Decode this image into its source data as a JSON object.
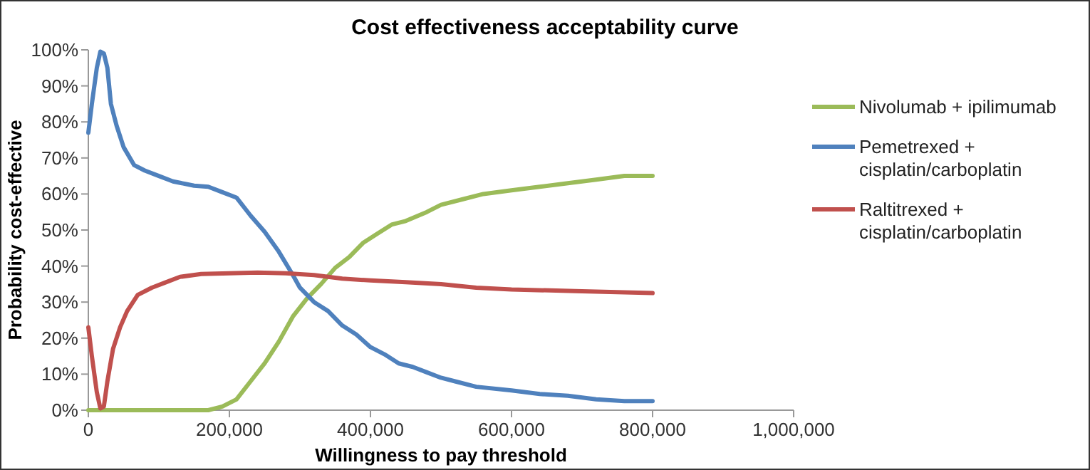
{
  "chart_data": {
    "type": "line",
    "title": "Cost effectiveness acceptability curve",
    "xlabel": "Willingness to pay threshold",
    "ylabel": "Probability cost-effective",
    "xlim": [
      0,
      1000000
    ],
    "xticks": [
      0,
      {
        "value": 200000,
        "label": "200,000"
      },
      {
        "value": 400000,
        "label": "400,000"
      },
      {
        "value": 600000,
        "label": "600,000"
      },
      {
        "value": 800000,
        "label": "800,000"
      },
      {
        "value": 1000000,
        "label": "1,000,000"
      }
    ],
    "ylim": [
      0,
      100
    ],
    "yticks": [
      {
        "value": 0,
        "label": "0%"
      },
      {
        "value": 10,
        "label": "10%"
      },
      {
        "value": 20,
        "label": "20%"
      },
      {
        "value": 30,
        "label": "30%"
      },
      {
        "value": 40,
        "label": "40%"
      },
      {
        "value": 50,
        "label": "50%"
      },
      {
        "value": 60,
        "label": "60%"
      },
      {
        "value": 70,
        "label": "70%"
      },
      {
        "value": 80,
        "label": "80%"
      },
      {
        "value": 90,
        "label": "90%"
      },
      {
        "value": 100,
        "label": "100%"
      }
    ],
    "grid": false,
    "legend": "right",
    "marker": "none",
    "line_style": "solid",
    "series": [
      {
        "name": "Nivolumab + ipilimumab",
        "color": "#9bbb59",
        "x": [
          0,
          170000,
          190000,
          210000,
          230000,
          250000,
          270000,
          290000,
          310000,
          330000,
          350000,
          370000,
          390000,
          410000,
          430000,
          450000,
          480000,
          500000,
          530000,
          560000,
          600000,
          640000,
          680000,
          720000,
          760000,
          800000
        ],
        "values": [
          0,
          0,
          1,
          3,
          8,
          13,
          19,
          26,
          31,
          35,
          39.5,
          42.5,
          46.5,
          49,
          51.5,
          52.5,
          55,
          57,
          58.5,
          60,
          61,
          62,
          63,
          64,
          65,
          65
        ]
      },
      {
        "name": "Pemetrexed + cisplatin/carboplatin",
        "color": "#4f81bd",
        "x": [
          0,
          5000,
          12000,
          17000,
          22000,
          27000,
          32000,
          40000,
          50000,
          65000,
          80000,
          100000,
          120000,
          150000,
          170000,
          190000,
          210000,
          230000,
          250000,
          270000,
          290000,
          300000,
          320000,
          340000,
          360000,
          380000,
          400000,
          420000,
          440000,
          460000,
          480000,
          500000,
          520000,
          550000,
          600000,
          640000,
          680000,
          720000,
          760000,
          800000
        ],
        "values": [
          77,
          85,
          95,
          99.5,
          99,
          95,
          85,
          79,
          73,
          68,
          66.5,
          65,
          63.5,
          62.3,
          62,
          60.5,
          59,
          54,
          49.5,
          44,
          37.5,
          34,
          30,
          27.5,
          23.5,
          21,
          17.5,
          15.5,
          13,
          12,
          10.5,
          9,
          8,
          6.5,
          5.5,
          4.5,
          4,
          3,
          2.5,
          2.5
        ]
      },
      {
        "name": "Raltitrexed + cisplatin/carboplatin",
        "color": "#c0504d",
        "x": [
          0,
          5000,
          12000,
          17000,
          22000,
          27000,
          35000,
          45000,
          55000,
          70000,
          90000,
          110000,
          130000,
          160000,
          200000,
          240000,
          280000,
          320000,
          360000,
          400000,
          450000,
          500000,
          550000,
          600000,
          700000,
          800000
        ],
        "values": [
          23,
          15,
          5,
          0.5,
          1,
          8,
          17,
          23,
          27.5,
          32,
          34,
          35.5,
          37,
          37.8,
          38,
          38.2,
          38,
          37.5,
          36.5,
          36,
          35.5,
          35,
          34,
          33.5,
          33,
          32.5
        ]
      }
    ]
  }
}
